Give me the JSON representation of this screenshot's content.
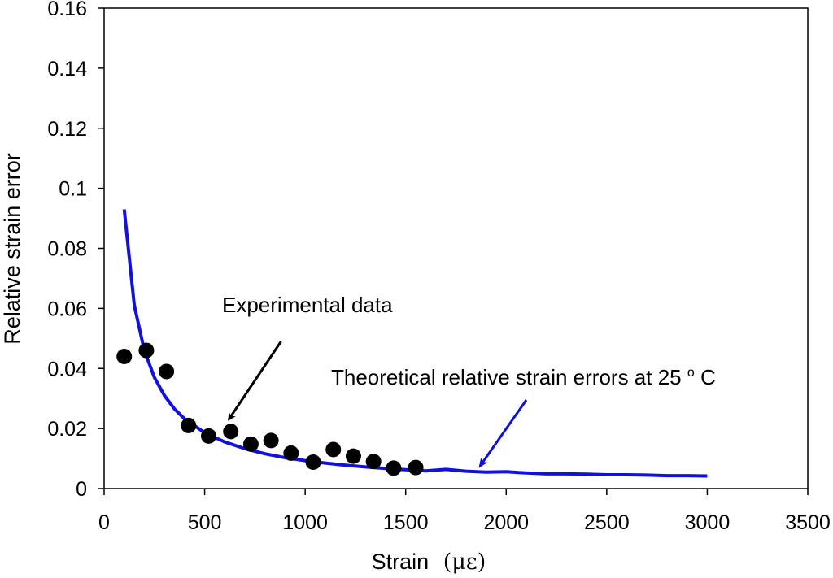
{
  "chart_data": {
    "type": "scatter",
    "title": "",
    "xlabel": "Strain",
    "xlabel_unit": "(με)",
    "ylabel": "Relative strain error",
    "xlim": [
      0,
      3500
    ],
    "ylim": [
      0,
      0.16
    ],
    "x_ticks": [
      "0",
      "500",
      "1000",
      "1500",
      "2000",
      "2500",
      "3000",
      "3500"
    ],
    "y_ticks": [
      "0",
      "0.02",
      "0.04",
      "0.06",
      "0.08",
      "0.1",
      "0.12",
      "0.14",
      "0.16"
    ],
    "grid": false,
    "colors": {
      "experimental": "#000000",
      "theoretical": "#1010e0"
    },
    "series": [
      {
        "name": "Experimental data",
        "kind": "scatter",
        "x": [
          100,
          210,
          310,
          420,
          520,
          630,
          730,
          830,
          930,
          1040,
          1140,
          1240,
          1340,
          1440,
          1550
        ],
        "y": [
          0.044,
          0.046,
          0.039,
          0.021,
          0.0175,
          0.019,
          0.0148,
          0.016,
          0.0118,
          0.0088,
          0.013,
          0.0108,
          0.009,
          0.0068,
          0.007
        ]
      },
      {
        "name": "Theoretical relative strain errors at 25oC",
        "kind": "line",
        "x": [
          100,
          150,
          200,
          250,
          300,
          350,
          400,
          500,
          600,
          700,
          800,
          900,
          1000,
          1100,
          1200,
          1300,
          1400,
          1500,
          1600,
          1700,
          1800,
          1900,
          2000,
          2100,
          2200,
          2300,
          2400,
          2500,
          2600,
          2700,
          2800,
          2900,
          3000
        ],
        "y": [
          0.093,
          0.061,
          0.046,
          0.037,
          0.031,
          0.0265,
          0.0232,
          0.0186,
          0.0155,
          0.0133,
          0.0116,
          0.0103,
          0.0093,
          0.0085,
          0.0078,
          0.0072,
          0.0067,
          0.0063,
          0.0059,
          0.0064,
          0.0058,
          0.0055,
          0.0056,
          0.0052,
          0.0049,
          0.0049,
          0.0048,
          0.0046,
          0.0046,
          0.0045,
          0.0043,
          0.0043,
          0.0042
        ]
      }
    ],
    "annotations": [
      {
        "text": "Experimental data",
        "arrow_from": [
          880,
          0.049
        ],
        "arrow_to": [
          620,
          0.023
        ]
      },
      {
        "text_main": "Theoretical relative strain errors  at 25",
        "text_sup": "o",
        "text_end": "C",
        "arrow_from": [
          2100,
          0.0295
        ],
        "arrow_to": [
          1870,
          0.0075
        ]
      }
    ]
  }
}
